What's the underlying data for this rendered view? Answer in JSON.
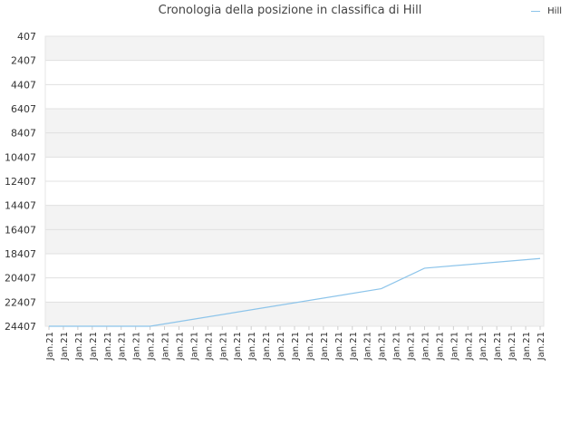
{
  "chart_data": {
    "type": "line",
    "title": "Cronologia della posizione in classifica di Hill",
    "xlabel": "",
    "ylabel": "",
    "y_reversed": true,
    "ylim": [
      407,
      24407
    ],
    "y_ticks": [
      407,
      2407,
      4407,
      6407,
      8407,
      10407,
      12407,
      14407,
      16407,
      18407,
      20407,
      22407,
      24407
    ],
    "x_tick_labels": [
      "Jan.21",
      "Jan.21",
      "Jan.21",
      "Jan.21",
      "Jan.21",
      "Jan.21",
      "Jan.21",
      "Jan.21",
      "Jan.21",
      "Jan.21",
      "Jan.21",
      "Jan.21",
      "Jan.21",
      "Jan.21",
      "Jan.21",
      "Jan.21",
      "Jan.21",
      "Jan.21",
      "Jan.21",
      "Jan.21",
      "Jan.21",
      "Jan.21",
      "Jan.21",
      "Jan.21",
      "Jan.21",
      "Jan.21",
      "Jan.21",
      "Jan.21",
      "Jan.21",
      "Jan.21",
      "Jan.21",
      "Jan.21",
      "Jan.21",
      "Jan.21",
      "Jan.21"
    ],
    "grid": true,
    "legend_position": "top-right",
    "series": [
      {
        "name": "Hill",
        "color": "#8cc4ea",
        "points": [
          {
            "i": 0,
            "rank": 24407
          },
          {
            "i": 7,
            "rank": 24407
          },
          {
            "i": 23,
            "rank": 21300
          },
          {
            "i": 26,
            "rank": 19600
          },
          {
            "i": 34,
            "rank": 18800
          }
        ]
      }
    ]
  }
}
